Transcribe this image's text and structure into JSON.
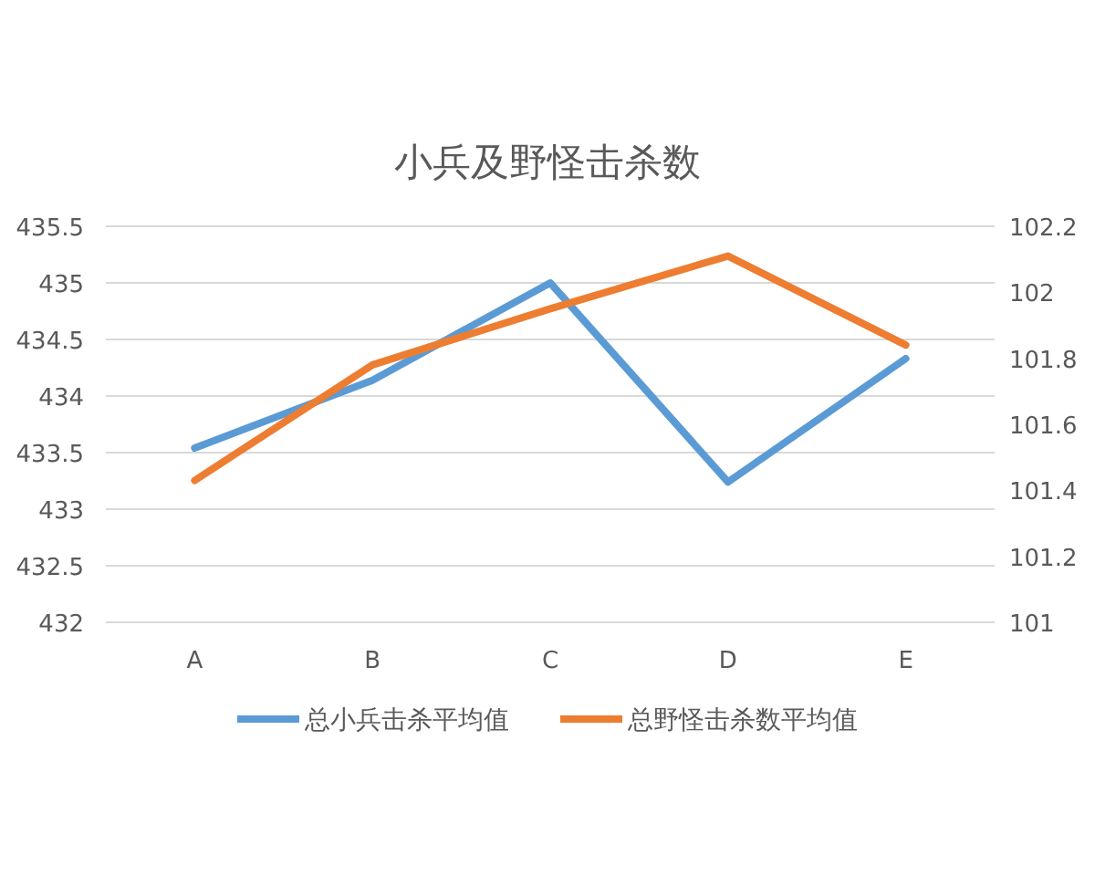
{
  "chart_data": {
    "type": "line",
    "title": "小兵及野怪击杀数",
    "categories": [
      "A",
      "B",
      "C",
      "D",
      "E"
    ],
    "series": [
      {
        "name": "总小兵击杀平均值",
        "color": "#5b9bd5",
        "values": [
          433.54,
          434.14,
          435.0,
          433.24,
          434.33
        ]
      },
      {
        "name": "总野怪击杀数平均值",
        "color": "#ed7d31",
        "axis": "y2",
        "values": [
          101.43,
          101.78,
          101.95,
          102.11,
          101.84
        ]
      }
    ],
    "ylim": [
      432,
      435.5
    ],
    "yticks": [
      432,
      432.5,
      433,
      433.5,
      434,
      434.5,
      435,
      435.5
    ],
    "y2lim": [
      101,
      102.2
    ],
    "y2ticks": [
      101,
      101.2,
      101.4,
      101.6,
      101.8,
      102,
      102.2
    ],
    "grid": "y",
    "legend": "bottom",
    "marker": "none",
    "line_style": "solid"
  }
}
